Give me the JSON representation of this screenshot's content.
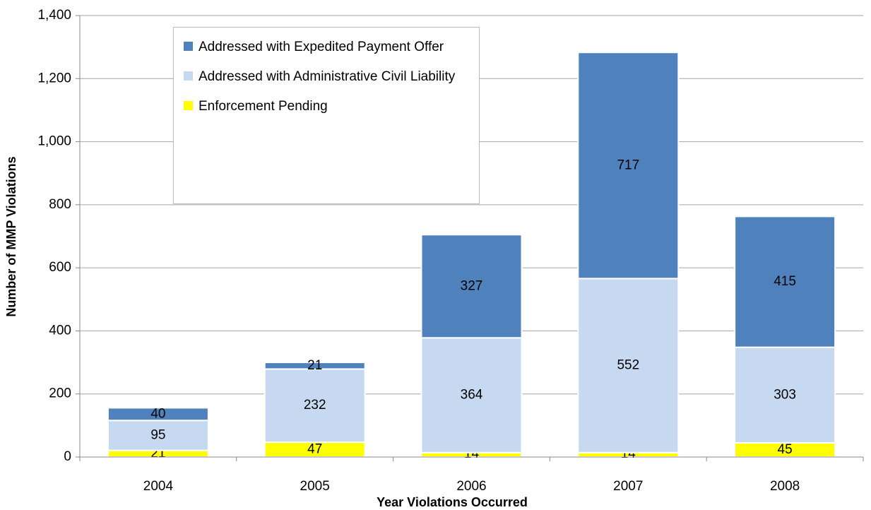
{
  "chart_data": {
    "type": "stacked_bar",
    "x_label": "Year Violations Occurred",
    "y_label": "Number of MMP Violations",
    "categories": [
      "2004",
      "2005",
      "2006",
      "2007",
      "2008"
    ],
    "series": [
      {
        "name": "Enforcement Pending",
        "color": "#ffff00",
        "values": [
          21,
          47,
          14,
          14,
          45
        ]
      },
      {
        "name": "Addressed with Administrative  Civil Liability",
        "color": "#c6d9f1",
        "values": [
          95,
          232,
          364,
          552,
          303
        ]
      },
      {
        "name": "Addressed with Expedited Payment Offer",
        "color": "#4f81bd",
        "values": [
          40,
          21,
          327,
          717,
          415
        ]
      }
    ],
    "legend_order": "reverse",
    "ylim": [
      0,
      1400
    ],
    "yticks": [
      0,
      {
        "value": 200,
        "label": "200"
      },
      400,
      600,
      800,
      {
        "value": 1000,
        "label": "1,000"
      },
      {
        "value": 1200,
        "label": "1,200"
      },
      {
        "value": 1400,
        "label": "1,400"
      }
    ],
    "grid": true
  }
}
